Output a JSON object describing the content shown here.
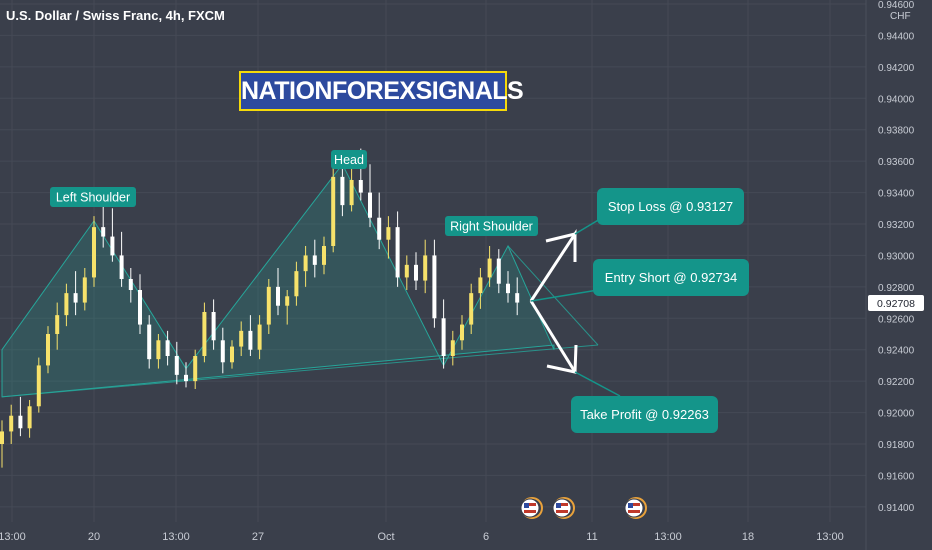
{
  "header": {
    "symbol_title": "U.S. Dollar / Swiss Franc, 4h, FXCM"
  },
  "watermark": {
    "text": "NATIONFOREXSIGNALS"
  },
  "colors": {
    "background": "#3a3f4b",
    "grid": "#454a56",
    "bull_candle": "#f7e26b",
    "bear_candle": "#ffffff",
    "pattern_fill": "#2a8f86",
    "pattern_line": "#26a69a",
    "label_bg": "#14958a",
    "arrow": "#ffffff",
    "axis_text": "#c8ccd4"
  },
  "chart_data": {
    "type": "candlestick",
    "title": "U.S. Dollar / Swiss Franc, 4h, FXCM",
    "currency_label": "CHF",
    "y_ticks": [
      "0.94600",
      "0.94400",
      "0.94200",
      "0.94000",
      "0.93800",
      "0.93600",
      "0.93400",
      "0.93200",
      "0.93000",
      "0.92800",
      "0.92600",
      "0.92400",
      "0.92200",
      "0.92000",
      "0.91800",
      "0.91600",
      "0.91400"
    ],
    "x_ticks": [
      "13:00",
      "20",
      "13:00",
      "27",
      "Oct",
      "6",
      "11",
      "13:00",
      "18",
      "13:00"
    ],
    "ylim": [
      0.9138,
      0.946
    ],
    "grid": true,
    "last_price": "0.92708",
    "candles": [
      {
        "o": 0.918,
        "h": 0.9195,
        "l": 0.9165,
        "c": 0.9188
      },
      {
        "o": 0.9188,
        "h": 0.9205,
        "l": 0.918,
        "c": 0.9198
      },
      {
        "o": 0.9198,
        "h": 0.921,
        "l": 0.9185,
        "c": 0.919
      },
      {
        "o": 0.919,
        "h": 0.9208,
        "l": 0.9184,
        "c": 0.9204
      },
      {
        "o": 0.9204,
        "h": 0.9235,
        "l": 0.92,
        "c": 0.923
      },
      {
        "o": 0.923,
        "h": 0.9255,
        "l": 0.9225,
        "c": 0.925
      },
      {
        "o": 0.925,
        "h": 0.927,
        "l": 0.924,
        "c": 0.9262
      },
      {
        "o": 0.9262,
        "h": 0.9282,
        "l": 0.9255,
        "c": 0.9276
      },
      {
        "o": 0.9276,
        "h": 0.929,
        "l": 0.9262,
        "c": 0.927
      },
      {
        "o": 0.927,
        "h": 0.9292,
        "l": 0.9265,
        "c": 0.9286
      },
      {
        "o": 0.9286,
        "h": 0.9325,
        "l": 0.928,
        "c": 0.9318
      },
      {
        "o": 0.9318,
        "h": 0.9334,
        "l": 0.9305,
        "c": 0.9312
      },
      {
        "o": 0.9312,
        "h": 0.933,
        "l": 0.9296,
        "c": 0.93
      },
      {
        "o": 0.93,
        "h": 0.9315,
        "l": 0.928,
        "c": 0.9285
      },
      {
        "o": 0.9285,
        "h": 0.9292,
        "l": 0.927,
        "c": 0.9278
      },
      {
        "o": 0.9278,
        "h": 0.9288,
        "l": 0.925,
        "c": 0.9256
      },
      {
        "o": 0.9256,
        "h": 0.9262,
        "l": 0.9228,
        "c": 0.9234
      },
      {
        "o": 0.9234,
        "h": 0.925,
        "l": 0.9228,
        "c": 0.9246
      },
      {
        "o": 0.9246,
        "h": 0.9252,
        "l": 0.923,
        "c": 0.9236
      },
      {
        "o": 0.9236,
        "h": 0.9245,
        "l": 0.9218,
        "c": 0.9224
      },
      {
        "o": 0.9224,
        "h": 0.9232,
        "l": 0.9216,
        "c": 0.922
      },
      {
        "o": 0.922,
        "h": 0.924,
        "l": 0.9215,
        "c": 0.9236
      },
      {
        "o": 0.9236,
        "h": 0.927,
        "l": 0.9232,
        "c": 0.9264
      },
      {
        "o": 0.9264,
        "h": 0.9272,
        "l": 0.924,
        "c": 0.9246
      },
      {
        "o": 0.9246,
        "h": 0.9254,
        "l": 0.9225,
        "c": 0.9232
      },
      {
        "o": 0.9232,
        "h": 0.9246,
        "l": 0.9228,
        "c": 0.9242
      },
      {
        "o": 0.9242,
        "h": 0.9258,
        "l": 0.9236,
        "c": 0.9252
      },
      {
        "o": 0.9252,
        "h": 0.9262,
        "l": 0.9236,
        "c": 0.924
      },
      {
        "o": 0.924,
        "h": 0.9262,
        "l": 0.9234,
        "c": 0.9256
      },
      {
        "o": 0.9256,
        "h": 0.9285,
        "l": 0.925,
        "c": 0.928
      },
      {
        "o": 0.928,
        "h": 0.9292,
        "l": 0.9262,
        "c": 0.9268
      },
      {
        "o": 0.9268,
        "h": 0.9278,
        "l": 0.9256,
        "c": 0.9274
      },
      {
        "o": 0.9274,
        "h": 0.9296,
        "l": 0.9268,
        "c": 0.929
      },
      {
        "o": 0.929,
        "h": 0.9306,
        "l": 0.928,
        "c": 0.93
      },
      {
        "o": 0.93,
        "h": 0.931,
        "l": 0.9286,
        "c": 0.9294
      },
      {
        "o": 0.9294,
        "h": 0.9312,
        "l": 0.9288,
        "c": 0.9306
      },
      {
        "o": 0.9306,
        "h": 0.936,
        "l": 0.9302,
        "c": 0.935
      },
      {
        "o": 0.935,
        "h": 0.9365,
        "l": 0.9325,
        "c": 0.9332
      },
      {
        "o": 0.9332,
        "h": 0.9355,
        "l": 0.9328,
        "c": 0.9348
      },
      {
        "o": 0.9348,
        "h": 0.9368,
        "l": 0.9335,
        "c": 0.934
      },
      {
        "o": 0.934,
        "h": 0.9358,
        "l": 0.9318,
        "c": 0.9324
      },
      {
        "o": 0.9324,
        "h": 0.934,
        "l": 0.9304,
        "c": 0.931
      },
      {
        "o": 0.931,
        "h": 0.9325,
        "l": 0.9298,
        "c": 0.9318
      },
      {
        "o": 0.9318,
        "h": 0.9328,
        "l": 0.928,
        "c": 0.9286
      },
      {
        "o": 0.9286,
        "h": 0.93,
        "l": 0.9278,
        "c": 0.9294
      },
      {
        "o": 0.9294,
        "h": 0.9302,
        "l": 0.9278,
        "c": 0.9284
      },
      {
        "o": 0.9284,
        "h": 0.931,
        "l": 0.9276,
        "c": 0.93
      },
      {
        "o": 0.93,
        "h": 0.931,
        "l": 0.9254,
        "c": 0.926
      },
      {
        "o": 0.926,
        "h": 0.9272,
        "l": 0.9228,
        "c": 0.9236
      },
      {
        "o": 0.9236,
        "h": 0.9252,
        "l": 0.923,
        "c": 0.9246
      },
      {
        "o": 0.9246,
        "h": 0.9262,
        "l": 0.924,
        "c": 0.9256
      },
      {
        "o": 0.9256,
        "h": 0.9282,
        "l": 0.925,
        "c": 0.9276
      },
      {
        "o": 0.9276,
        "h": 0.9292,
        "l": 0.9266,
        "c": 0.9286
      },
      {
        "o": 0.9286,
        "h": 0.9306,
        "l": 0.928,
        "c": 0.9298
      },
      {
        "o": 0.9298,
        "h": 0.9304,
        "l": 0.9276,
        "c": 0.9282
      },
      {
        "o": 0.9282,
        "h": 0.929,
        "l": 0.927,
        "c": 0.9276
      },
      {
        "o": 0.9276,
        "h": 0.9286,
        "l": 0.9262,
        "c": 0.927
      }
    ],
    "pattern": {
      "outline": [
        [
          0,
          0.924
        ],
        [
          10,
          0.9322
        ],
        [
          20,
          0.9228
        ],
        [
          37,
          0.9358
        ],
        [
          48,
          0.923
        ],
        [
          55,
          0.9306
        ],
        [
          60,
          0.924
        ]
      ],
      "neckline": [
        [
          0,
          0.921
        ],
        [
          60,
          0.9243
        ]
      ],
      "labels": [
        "Left Shoulder",
        "Head",
        "Right Shoulder"
      ]
    },
    "annotations": {
      "stop_loss": "Stop Loss @ 0.93127",
      "entry_short": "Entry Short @ 0.92734",
      "take_profit": "Take Profit @ 0.92263"
    }
  }
}
